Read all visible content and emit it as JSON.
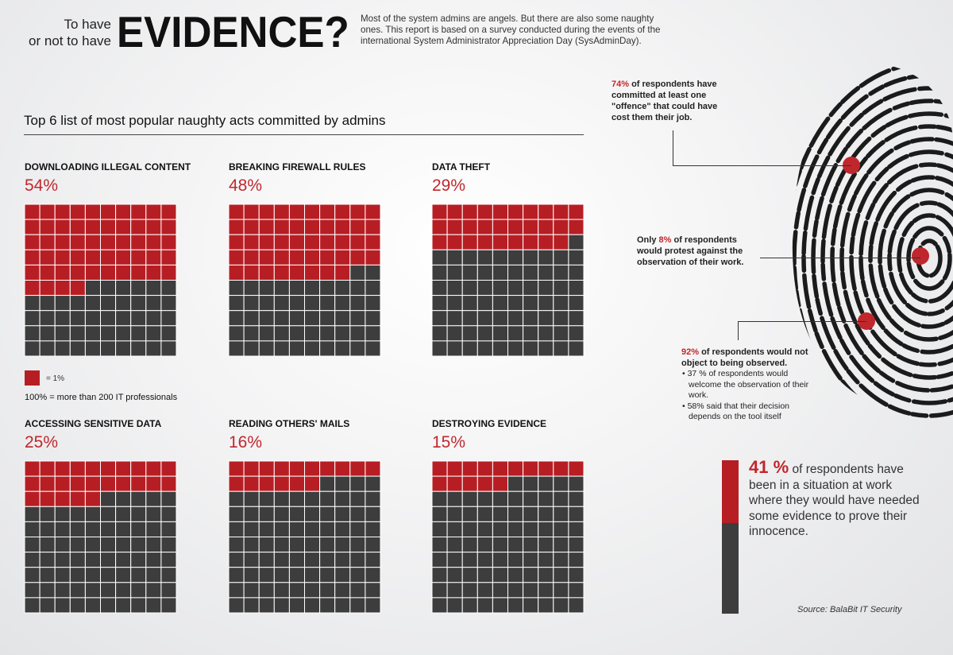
{
  "header": {
    "title_prefix_line1": "To have",
    "title_prefix_line2": "or not to have",
    "title_main": "EVIDENCE?",
    "intro": "Most of the system admins are angels. But there are also some naughty ones. This report is based on a survey conducted during the events of the international System Administrator Appreciation Day (SysAdminDay)."
  },
  "section_title": "Top 6 list of most popular naughty acts committed by admins",
  "legend": {
    "unit_label": "= 1%",
    "base_label": "100% = more than 200 IT professionals"
  },
  "colors": {
    "accent": "#b71e24",
    "empty": "#3d3d3d",
    "grid": "#ffffff",
    "text_red": "#c0272d"
  },
  "chart_data": {
    "type": "waffle",
    "grid": "10x10",
    "unit": "1% per square",
    "items": [
      {
        "label": "DOWNLOADING ILLEGAL CONTENT",
        "value_label": "54%",
        "value": 54
      },
      {
        "label": "BREAKING FIREWALL RULES",
        "value_label": "48%",
        "value": 48
      },
      {
        "label": "DATA THEFT",
        "value_label": "29%",
        "value": 29
      },
      {
        "label": "ACCESSING SENSITIVE DATA",
        "value_label": "25%",
        "value": 25
      },
      {
        "label": "READING OTHERS' MAILS",
        "value_label": "16%",
        "value": 16
      },
      {
        "label": "DESTROYING EVIDENCE",
        "value_label": "15%",
        "value": 15
      }
    ]
  },
  "callouts": {
    "c74": {
      "pct": "74%",
      "text": " of respondents have committed at least one \"offence\" that could have cost them their job."
    },
    "c8": {
      "prefix": "Only ",
      "pct": "8%",
      "text": " of respondents would protest against the observation of their work."
    },
    "c92": {
      "pct": "92%",
      "text": " of respondents would not object to being observed.",
      "bullets": [
        "• 37 % of respondents would welcome the observation of their work.",
        "• 58% said that their decision depends on the tool itself"
      ]
    }
  },
  "stat": {
    "value": 41,
    "number": "41 %",
    "text": " of respondents have been in a situation at work where they would have needed some evidence to prove their innocence."
  },
  "source": "Source: BalaBit IT Security"
}
